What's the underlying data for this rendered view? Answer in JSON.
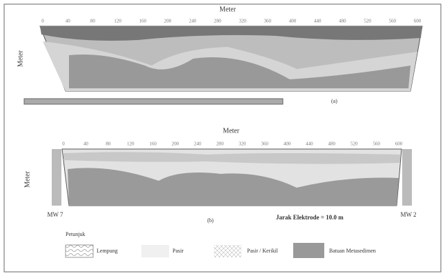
{
  "top_section": {
    "x_axis_title": "Meter",
    "y_axis_title": "Meter",
    "panel_label": "(a)",
    "x_ticks": [
      "0",
      "40",
      "80",
      "120",
      "160",
      "200",
      "240",
      "280",
      "320",
      "360",
      "400",
      "440",
      "480",
      "520",
      "560",
      "600"
    ]
  },
  "bottom_section": {
    "x_axis_title": "Meter",
    "y_axis_title": "Meter",
    "panel_label": "(b)",
    "left_well": "MW 7",
    "right_well": "MW 2",
    "spacing_note": "Jarak Elektrode = 10.0 m",
    "x_ticks": [
      "0",
      "40",
      "80",
      "120",
      "160",
      "200",
      "240",
      "280",
      "320",
      "360",
      "400",
      "440",
      "480",
      "520",
      "560",
      "600"
    ]
  },
  "legend": {
    "title": "Petunjuk",
    "items": [
      "Lempung",
      "Pasir",
      "Pasir / Kerikil",
      "Batuan Metasedimen"
    ]
  }
}
